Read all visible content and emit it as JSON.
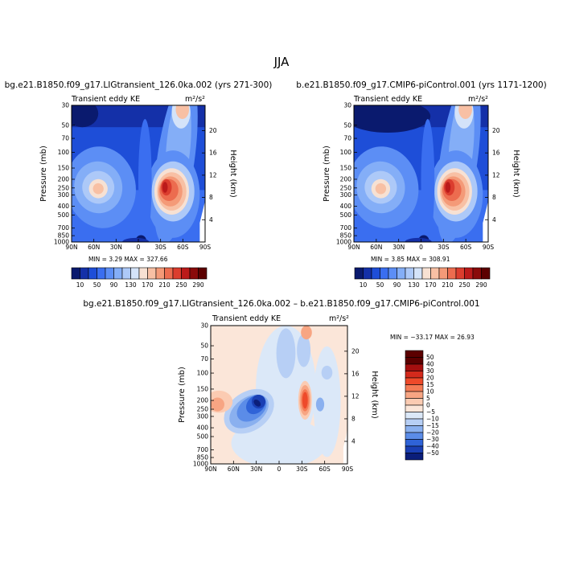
{
  "figure": {
    "title": "JJA"
  },
  "chart_data": [
    {
      "type": "heatmap",
      "title": "bg.e21.B1850.f09_g17.LIGtransient_126.0ka.002 (yrs 271-300)",
      "subtitle": "Transient eddy KE",
      "units": "m²/s²",
      "xlabel": "",
      "ylabel": "Pressure (mb)",
      "ylabel_right": "Height (km)",
      "x_ticks": [
        "90N",
        "60N",
        "30N",
        "0",
        "30S",
        "60S",
        "90S"
      ],
      "y_ticks": [
        "30",
        "50",
        "70",
        "100",
        "150",
        "200",
        "250",
        "300",
        "400",
        "500",
        "700",
        "850",
        "1000"
      ],
      "y_ticks_right": [
        "20",
        "16",
        "12",
        "8",
        "4"
      ],
      "min_max_text": "MIN =    3.29   MAX = 327.66",
      "colorbar_labels": [
        "10",
        "50",
        "90",
        "130",
        "170",
        "210",
        "250",
        "290"
      ],
      "colorbar_orientation": "horizontal"
    },
    {
      "type": "heatmap",
      "title": "b.e21.B1850.f09_g17.CMIP6-piControl.001 (yrs 1171-1200)",
      "subtitle": "Transient eddy KE",
      "units": "m²/s²",
      "xlabel": "",
      "ylabel": "Pressure (mb)",
      "ylabel_right": "Height (km)",
      "x_ticks": [
        "90N",
        "60N",
        "30N",
        "0",
        "30S",
        "60S",
        "90S"
      ],
      "y_ticks": [
        "30",
        "50",
        "70",
        "100",
        "150",
        "200",
        "250",
        "300",
        "400",
        "500",
        "700",
        "850",
        "1000"
      ],
      "y_ticks_right": [
        "20",
        "16",
        "12",
        "8",
        "4"
      ],
      "min_max_text": "MIN =    3.85   MAX = 308.91",
      "colorbar_labels": [
        "10",
        "50",
        "90",
        "130",
        "170",
        "210",
        "250",
        "290"
      ],
      "colorbar_orientation": "horizontal"
    },
    {
      "type": "heatmap",
      "title": "bg.e21.B1850.f09_g17.LIGtransient_126.0ka.002 – b.e21.B1850.f09_g17.CMIP6-piControl.001",
      "subtitle": "Transient eddy KE",
      "units": "m²/s²",
      "xlabel": "",
      "ylabel": "Pressure (mb)",
      "ylabel_right": "Height (km)",
      "x_ticks": [
        "90N",
        "60N",
        "30N",
        "0",
        "30S",
        "60S",
        "90S"
      ],
      "y_ticks": [
        "30",
        "50",
        "70",
        "100",
        "150",
        "200",
        "250",
        "300",
        "400",
        "500",
        "700",
        "850",
        "1000"
      ],
      "y_ticks_right": [
        "20",
        "16",
        "12",
        "8",
        "4"
      ],
      "min_max_text": "MIN = −33.17   MAX =  26.93",
      "colorbar_labels": [
        "50",
        "40",
        "30",
        "20",
        "15",
        "10",
        "5",
        "0",
        "−5",
        "−10",
        "−15",
        "−20",
        "−30",
        "−40",
        "−50"
      ],
      "colorbar_orientation": "vertical"
    }
  ],
  "palettes": {
    "abs": [
      "#0a1a6e",
      "#1430a8",
      "#1e4ed8",
      "#3a6ef0",
      "#5c8ef5",
      "#84aef7",
      "#adc9f8",
      "#d4e3f9",
      "#f7e1d3",
      "#f8c0a4",
      "#f49a78",
      "#ec6c4f",
      "#db3d2e",
      "#bb1a1a",
      "#8a0a0a",
      "#5c0000"
    ],
    "diff": [
      "#5c0000",
      "#a50f0f",
      "#d42a1c",
      "#ee4a2a",
      "#f47b55",
      "#f7a583",
      "#fbcbb2",
      "#fbe6d9",
      "#dbe8f8",
      "#b7cff5",
      "#8ab0ef",
      "#5b8ce8",
      "#2f63d8",
      "#1a3fb4",
      "#0b1e7a"
    ]
  }
}
